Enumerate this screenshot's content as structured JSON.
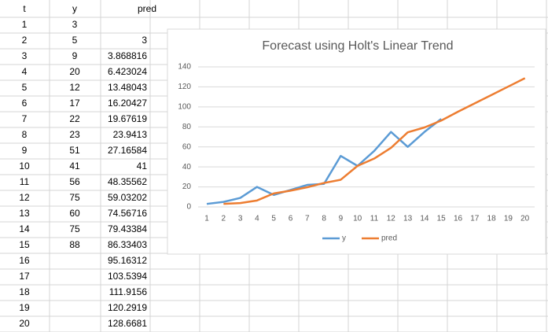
{
  "table": {
    "header": [
      "t",
      "y",
      "pred"
    ],
    "rows": [
      [
        1,
        3,
        null
      ],
      [
        2,
        5,
        3
      ],
      [
        3,
        9,
        3.868816
      ],
      [
        4,
        20,
        6.423024
      ],
      [
        5,
        12,
        13.48043
      ],
      [
        6,
        17,
        16.20427
      ],
      [
        7,
        22,
        19.67619
      ],
      [
        8,
        23,
        23.9413
      ],
      [
        9,
        51,
        27.16584
      ],
      [
        10,
        41,
        41
      ],
      [
        11,
        56,
        48.35562
      ],
      [
        12,
        75,
        59.03202
      ],
      [
        13,
        60,
        74.56716
      ],
      [
        14,
        75,
        79.43384
      ],
      [
        15,
        88,
        86.33403
      ],
      [
        16,
        null,
        95.16312
      ],
      [
        17,
        null,
        103.5394
      ],
      [
        18,
        null,
        111.9156
      ],
      [
        19,
        null,
        120.2919
      ],
      [
        20,
        null,
        128.6681
      ]
    ]
  },
  "chart_data": {
    "type": "line",
    "title": "Forecast using Holt's Linear Trend",
    "categories": [
      1,
      2,
      3,
      4,
      5,
      6,
      7,
      8,
      9,
      10,
      11,
      12,
      13,
      14,
      15,
      16,
      17,
      18,
      19,
      20
    ],
    "series": [
      {
        "name": "y",
        "color": "#5b9bd5",
        "values": [
          3,
          5,
          9,
          20,
          12,
          17,
          22,
          23,
          51,
          41,
          56,
          75,
          60,
          75,
          88,
          null,
          null,
          null,
          null,
          null
        ]
      },
      {
        "name": "pred",
        "color": "#ed7d31",
        "values": [
          null,
          3,
          3.868816,
          6.423024,
          13.48043,
          16.20427,
          19.67619,
          23.9413,
          27.16584,
          41,
          48.35562,
          59.03202,
          74.56716,
          79.43384,
          86.33403,
          95.16312,
          103.5394,
          111.9156,
          120.2919,
          128.6681
        ]
      }
    ],
    "ylim": [
      0,
      140
    ],
    "yticks": [
      0,
      20,
      40,
      60,
      80,
      100,
      120,
      140
    ],
    "grid": true,
    "legend": "bottom"
  }
}
